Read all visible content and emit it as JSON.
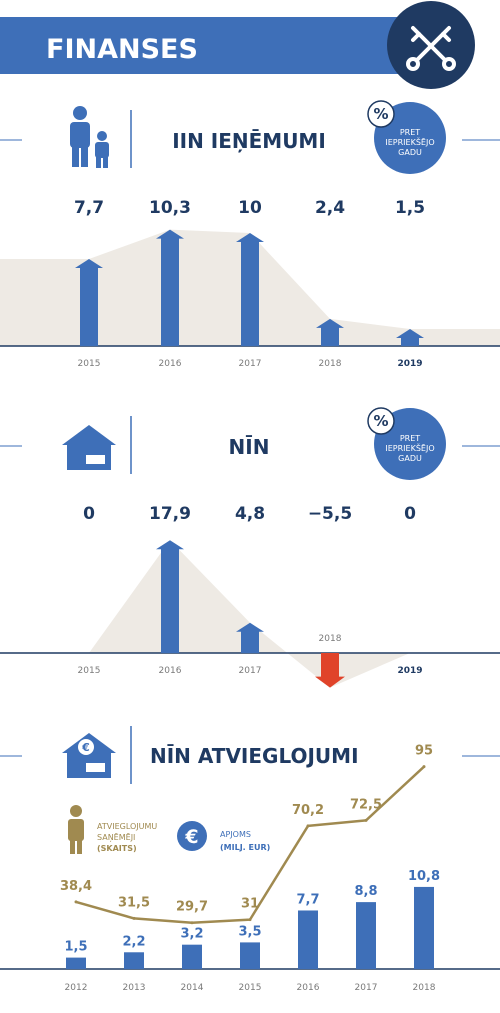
{
  "header": {
    "title": "FINANSES"
  },
  "badge": {
    "percent_symbol": "%",
    "line1": "PRET",
    "line2": "IEPRIEKŠĒJO",
    "line3": "GADU"
  },
  "colors": {
    "blue": "#3e6fb8",
    "navy": "#1f3a62",
    "red": "#e0432a",
    "beige": "#eeeae4",
    "gold": "#a08a50"
  },
  "chart_data": [
    {
      "type": "bar",
      "title": "IIN IEŅĒMUMI",
      "categories": [
        "2015",
        "2016",
        "2017",
        "2018",
        "2019"
      ],
      "labels": [
        "7,7",
        "10,3",
        "10",
        "2,4",
        "1,5"
      ],
      "values": [
        7.7,
        10.3,
        10,
        2.4,
        1.5
      ],
      "highlight_category": "2019"
    },
    {
      "type": "bar",
      "title": "NĪN",
      "categories": [
        "2015",
        "2016",
        "2017",
        "2018",
        "2019"
      ],
      "labels": [
        "0",
        "17,9",
        "4,8",
        "−5,5",
        "0"
      ],
      "values": [
        0,
        17.9,
        4.8,
        -5.5,
        0
      ],
      "highlight_category": "2019"
    },
    {
      "type": "bar",
      "title": "NĪN ATVIEGLOJUMI",
      "categories": [
        "2012",
        "2013",
        "2014",
        "2015",
        "2016",
        "2017",
        "2018"
      ],
      "legend": {
        "count_line1": "ATVIEGLOJUMU",
        "count_line2": "SAŅĒMĒJI",
        "count_line3": "(SKAITS)",
        "volume_symbol": "€",
        "volume_line1": "APJOMS",
        "volume_line2": "(MILJ. EUR)"
      },
      "series": [
        {
          "values": [
            38.4,
            31.5,
            29.7,
            31,
            70.2,
            72.5,
            95
          ],
          "labels": [
            "38,4",
            "31,5",
            "29,7",
            "31",
            "70,2",
            "72,5",
            "95"
          ]
        },
        {
          "values": [
            1.5,
            2.2,
            3.2,
            3.5,
            7.7,
            8.8,
            10.8
          ],
          "labels": [
            "1,5",
            "2,2",
            "3,2",
            "3,5",
            "7,7",
            "8,8",
            "10,8"
          ]
        }
      ]
    }
  ]
}
